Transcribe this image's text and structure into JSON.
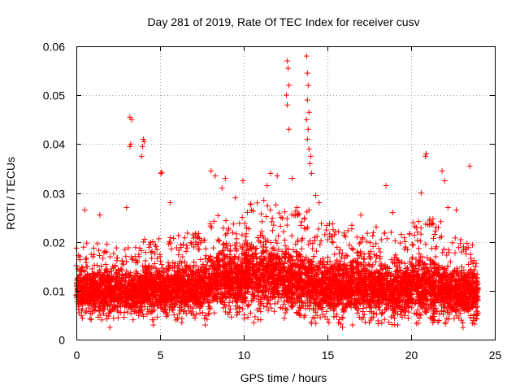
{
  "chart_data": {
    "type": "scatter",
    "title": "Day 281 of 2019, Rate Of TEC Index for receiver cusv",
    "xlabel": "GPS time / hours",
    "ylabel": "ROTI / TECUs",
    "xlim": [
      0,
      25
    ],
    "ylim": [
      0,
      0.06
    ],
    "x_ticks": [
      "0",
      "5",
      "10",
      "15",
      "20",
      "25"
    ],
    "y_ticks": [
      "0",
      "0.01",
      "0.02",
      "0.03",
      "0.04",
      "0.05",
      "0.06"
    ],
    "grid": true,
    "marker": "+",
    "color": "#ff0000",
    "series": [
      {
        "name": "",
        "x": [
          3.2,
          3.25,
          3.2,
          3.3,
          3.95,
          4.0,
          4.05,
          3.9,
          5.05,
          5.1,
          12.6,
          12.65,
          12.7,
          12.55,
          12.6,
          12.7,
          13.75,
          13.8,
          13.85,
          13.8,
          13.9,
          13.75,
          13.85,
          13.8,
          13.9,
          14.0,
          13.95,
          14.05,
          20.85,
          20.9,
          23.5,
          8.05,
          8.3,
          8.7,
          8.9,
          9.95,
          11.4,
          11.6,
          12.0,
          12.9,
          14.3,
          14.5,
          18.5,
          20.6,
          21.85,
          22.0,
          22.2,
          2.0,
          4.6,
          6.3,
          7.7,
          10.6,
          15.9,
          16.5,
          17.5,
          19.2,
          21.3,
          23.1,
          0.5,
          1.4,
          3.0,
          5.6,
          9.5,
          11.2,
          13.2,
          17.0,
          18.9,
          22.7
        ],
        "y": [
          0.0395,
          0.04,
          0.0455,
          0.045,
          0.0395,
          0.041,
          0.0405,
          0.0375,
          0.034,
          0.0342,
          0.057,
          0.0555,
          0.052,
          0.05,
          0.048,
          0.043,
          0.058,
          0.0545,
          0.052,
          0.049,
          0.0465,
          0.045,
          0.043,
          0.041,
          0.039,
          0.0375,
          0.036,
          0.034,
          0.0375,
          0.038,
          0.0355,
          0.0345,
          0.0335,
          0.031,
          0.033,
          0.0325,
          0.0315,
          0.034,
          0.0335,
          0.033,
          0.0295,
          0.028,
          0.0315,
          0.03,
          0.0345,
          0.0325,
          0.027,
          0.0025,
          0.003,
          0.0035,
          0.003,
          0.0035,
          0.0025,
          0.003,
          0.0035,
          0.003,
          0.0035,
          0.0025,
          0.0265,
          0.0255,
          0.027,
          0.028,
          0.029,
          0.0285,
          0.027,
          0.0255,
          0.026,
          0.0265
        ],
        "dense_band": [
          {
            "x": [
              0,
              2
            ],
            "y": [
              0.004,
              0.02
            ]
          },
          {
            "x": [
              2,
              4
            ],
            "y": [
              0.004,
              0.019
            ]
          },
          {
            "x": [
              4,
              6
            ],
            "y": [
              0.004,
              0.021
            ]
          },
          {
            "x": [
              6,
              8
            ],
            "y": [
              0.004,
              0.022
            ]
          },
          {
            "x": [
              8,
              10
            ],
            "y": [
              0.004,
              0.026
            ]
          },
          {
            "x": [
              10,
              12
            ],
            "y": [
              0.004,
              0.028
            ]
          },
          {
            "x": [
              12,
              14
            ],
            "y": [
              0.004,
              0.027
            ]
          },
          {
            "x": [
              14,
              16
            ],
            "y": [
              0.003,
              0.024
            ]
          },
          {
            "x": [
              16,
              18
            ],
            "y": [
              0.003,
              0.024
            ]
          },
          {
            "x": [
              18,
              20
            ],
            "y": [
              0.003,
              0.022
            ]
          },
          {
            "x": [
              20,
              22
            ],
            "y": [
              0.003,
              0.025
            ]
          },
          {
            "x": [
              22,
              24
            ],
            "y": [
              0.003,
              0.021
            ]
          }
        ]
      }
    ]
  }
}
